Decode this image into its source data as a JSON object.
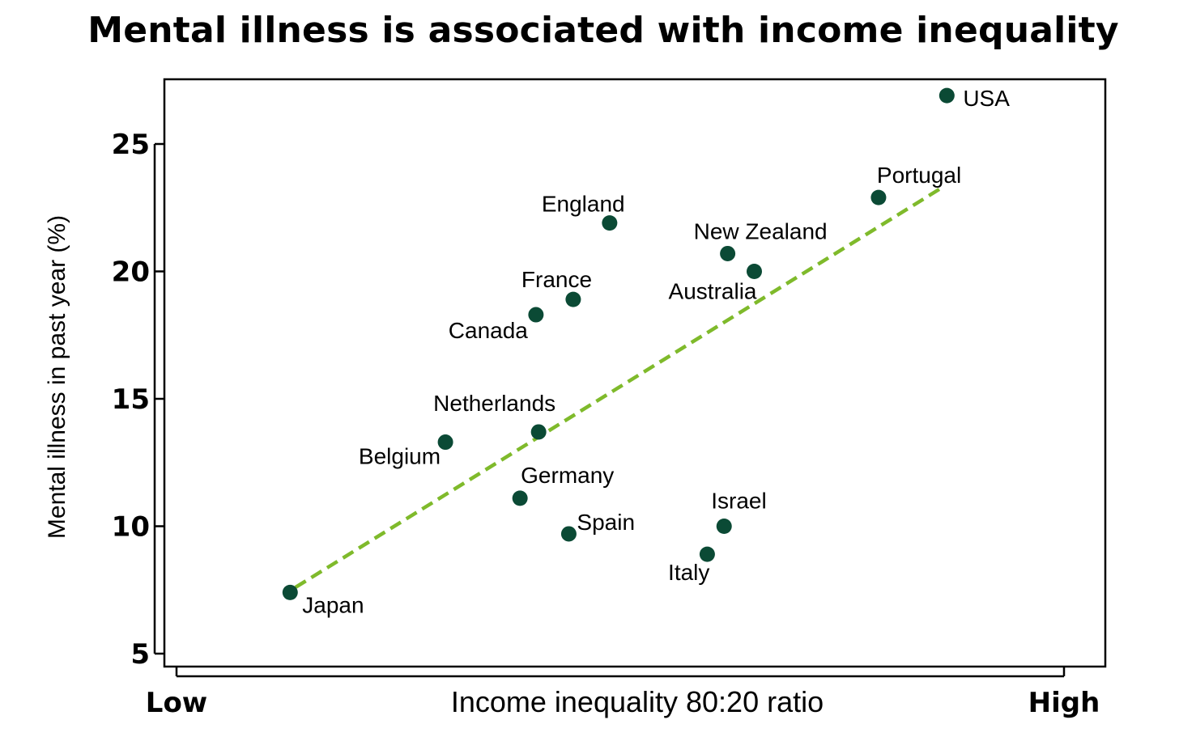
{
  "chart_data": {
    "type": "scatter",
    "title": "Mental illness is associated with income inequality",
    "xlabel": "Income inequality 80:20 ratio",
    "ylabel": "Mental illness in past year (%)",
    "x_tick_labels": [
      "Low",
      "High"
    ],
    "xlim": [
      0,
      100
    ],
    "ylim": [
      4.4,
      27.5
    ],
    "yticks": [
      5,
      10,
      15,
      20,
      25
    ],
    "grid": false,
    "colors": {
      "point": "#0b4a35",
      "trend": "#7fba2b",
      "axis": "#000000"
    },
    "points": [
      {
        "label": "USA",
        "x": 86.8,
        "y": 26.9
      },
      {
        "label": "Portugal",
        "x": 79.1,
        "y": 22.9
      },
      {
        "label": "England",
        "x": 48.8,
        "y": 21.9
      },
      {
        "label": "New Zealand",
        "x": 62.1,
        "y": 20.7
      },
      {
        "label": "Australia",
        "x": 65.1,
        "y": 20.0
      },
      {
        "label": "France",
        "x": 44.7,
        "y": 18.9
      },
      {
        "label": "Canada",
        "x": 40.5,
        "y": 18.3
      },
      {
        "label": "Netherlands",
        "x": 40.8,
        "y": 13.7
      },
      {
        "label": "Belgium",
        "x": 30.3,
        "y": 13.3
      },
      {
        "label": "Germany",
        "x": 38.7,
        "y": 11.1
      },
      {
        "label": "Spain",
        "x": 44.2,
        "y": 9.7
      },
      {
        "label": "Israel",
        "x": 61.7,
        "y": 10.0
      },
      {
        "label": "Italy",
        "x": 59.8,
        "y": 8.9
      },
      {
        "label": "Japan",
        "x": 12.8,
        "y": 7.4
      }
    ],
    "trendline": {
      "style": "dashed",
      "x": [
        13.4,
        86.3
      ],
      "y": [
        7.6,
        23.3
      ]
    }
  }
}
